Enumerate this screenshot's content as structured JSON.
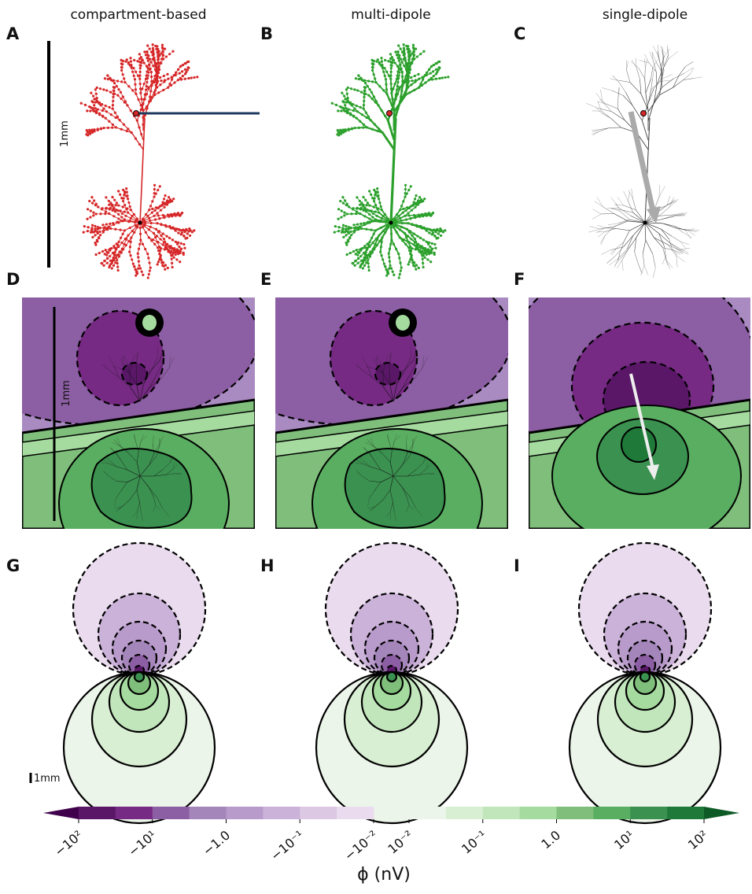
{
  "panels": [
    {
      "letter": "A",
      "title": "compartment-based",
      "scale": "1mm"
    },
    {
      "letter": "B",
      "title": "multi-dipole"
    },
    {
      "letter": "C",
      "title": "single-dipole"
    },
    {
      "letter": "D",
      "scale": "1mm"
    },
    {
      "letter": "E"
    },
    {
      "letter": "F"
    },
    {
      "letter": "G",
      "scale": "1mm"
    },
    {
      "letter": "H"
    },
    {
      "letter": "I"
    }
  ],
  "colorbar": {
    "negative_labels": [
      "−10²",
      "−10¹",
      "−1.0",
      "−10⁻¹",
      "−10⁻²"
    ],
    "positive_labels": [
      "10⁻²",
      "10⁻¹",
      "1.0",
      "10¹",
      "10²"
    ],
    "negative_colors": [
      "#40004b",
      "#5a1768",
      "#762a83",
      "#8c5ea3",
      "#a586bb",
      "#b89bcb",
      "#cbb2d9",
      "#dcc8e3",
      "#eadcee"
    ],
    "positive_colors": [
      "#ecf5ea",
      "#d9efd3",
      "#c2e6bc",
      "#a6dba0",
      "#7fbf7b",
      "#5aae61",
      "#3b9150",
      "#1f7a3a",
      "#0d5a26"
    ],
    "label": "ϕ (nV)"
  }
}
